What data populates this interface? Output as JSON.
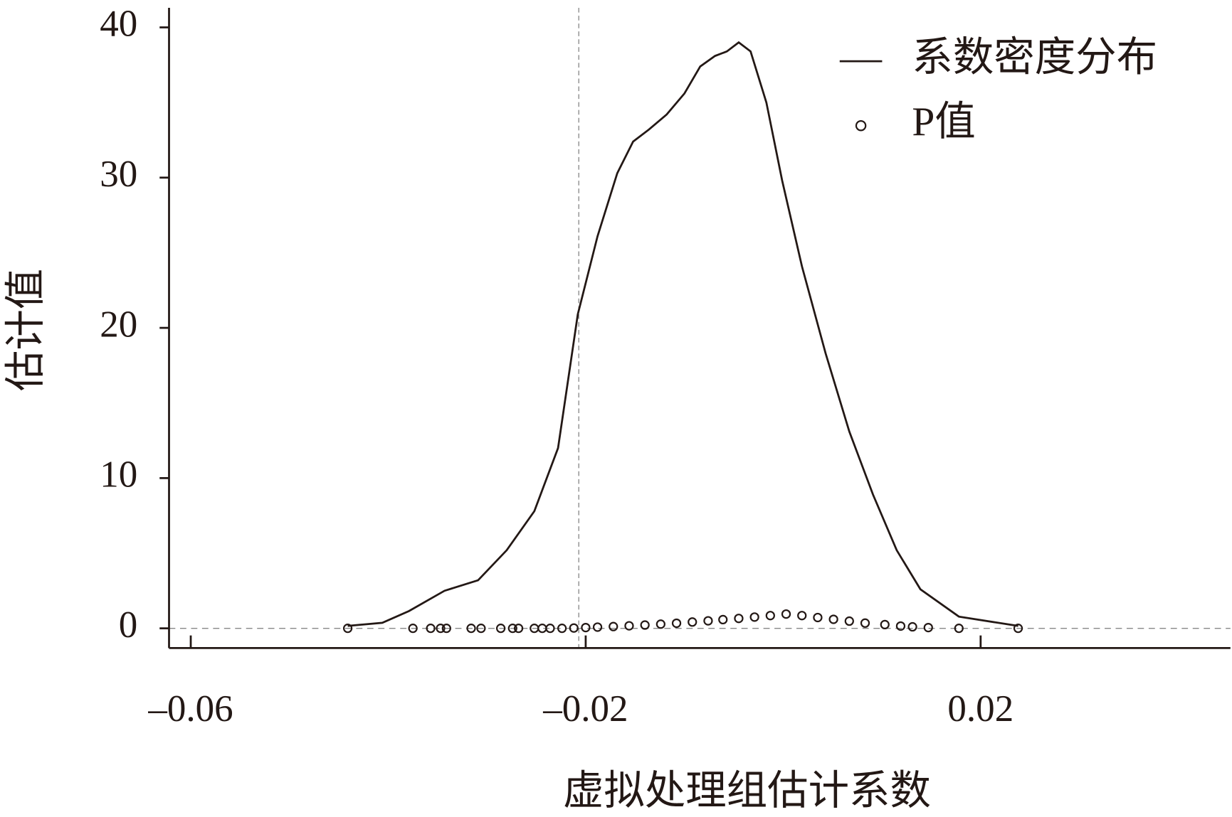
{
  "chart_data": {
    "type": "line",
    "xlabel": "虚拟处理组估计系数",
    "ylabel": "估计值",
    "xlim": [
      -0.0622,
      0.0453
    ],
    "ylim": [
      -1.31,
      41.3
    ],
    "xticks": [
      {
        "value": -0.06,
        "label": "–0.06"
      },
      {
        "value": -0.02,
        "label": "–0.02"
      },
      {
        "value": 0.02,
        "label": "0.02"
      }
    ],
    "yticks": [
      0,
      10,
      20,
      30,
      40
    ],
    "vline": -0.0207,
    "hline": 0,
    "legend": "upper right",
    "series": [
      {
        "name": "系数密度分布",
        "kind": "line",
        "color": "#231815",
        "x": [
          -0.0441,
          -0.0406,
          -0.0379,
          -0.0343,
          -0.0309,
          -0.028,
          -0.0252,
          -0.0228,
          -0.0208,
          -0.0188,
          -0.0168,
          -0.0152,
          -0.0136,
          -0.0118,
          -0.01,
          -0.0084,
          -0.0069,
          -0.0057,
          -0.0045,
          -0.0033,
          -0.0017,
          -0.0001,
          0.0019,
          0.0043,
          0.0067,
          0.0091,
          0.0115,
          0.0139,
          0.0178,
          0.0238
        ],
        "values": [
          0.16,
          0.37,
          1.15,
          2.5,
          3.2,
          5.2,
          7.8,
          12.0,
          20.9,
          26.1,
          30.3,
          32.4,
          33.2,
          34.2,
          35.6,
          37.4,
          38.1,
          38.4,
          39.0,
          38.4,
          35.0,
          29.8,
          24.1,
          18.3,
          13.1,
          8.9,
          5.2,
          2.6,
          0.78,
          0.16
        ]
      },
      {
        "name": "P值",
        "kind": "scatter",
        "color": "#231815",
        "x": [
          -0.0441,
          -0.0375,
          -0.0357,
          -0.0347,
          -0.0341,
          -0.0316,
          -0.0306,
          -0.0286,
          -0.0274,
          -0.0268,
          -0.0252,
          -0.0244,
          -0.0236,
          -0.0224,
          -0.0212,
          -0.02,
          -0.0188,
          -0.0172,
          -0.0156,
          -0.014,
          -0.0124,
          -0.0108,
          -0.0092,
          -0.0076,
          -0.0061,
          -0.0045,
          -0.0029,
          -0.0013,
          0.0003,
          0.0019,
          0.0035,
          0.0051,
          0.0067,
          0.0083,
          0.0103,
          0.0119,
          0.0131,
          0.0147,
          0.0178,
          0.0238
        ],
        "values": [
          0,
          0,
          0,
          0,
          0,
          0,
          0,
          0,
          0,
          0,
          0,
          0,
          0,
          0,
          0.02,
          0.05,
          0.08,
          0.12,
          0.17,
          0.22,
          0.28,
          0.34,
          0.42,
          0.5,
          0.58,
          0.66,
          0.75,
          0.85,
          0.95,
          0.85,
          0.72,
          0.6,
          0.48,
          0.35,
          0.25,
          0.15,
          0.1,
          0.05,
          0,
          0
        ]
      }
    ]
  }
}
